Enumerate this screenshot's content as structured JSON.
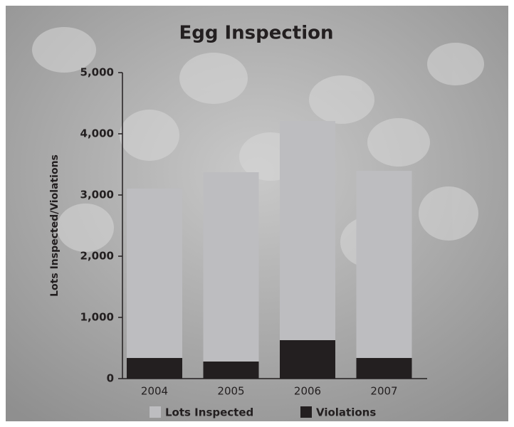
{
  "chart_data": {
    "type": "bar",
    "title": "Egg Inspection",
    "y_label": "Lots Inspected/Violations",
    "categories": [
      "2004",
      "2005",
      "2006",
      "2007"
    ],
    "series": [
      {
        "name": "Lots Inspected",
        "color": "#bdbdc0",
        "values": [
          3105,
          3372,
          4209,
          3395
        ]
      },
      {
        "name": "Violations",
        "color": "#231f20",
        "values": [
          337,
          279,
          628,
          337
        ]
      }
    ],
    "overlap": true,
    "ylim": [
      0,
      5000
    ],
    "yticks": [
      0,
      {
        "value": 1000,
        "label": "1,000"
      },
      {
        "value": 2000,
        "label": "2,000"
      },
      {
        "value": 3000,
        "label": "3,000"
      },
      {
        "value": 4000,
        "label": "4,000"
      },
      {
        "value": 5000,
        "label": "5,000"
      }
    ]
  }
}
